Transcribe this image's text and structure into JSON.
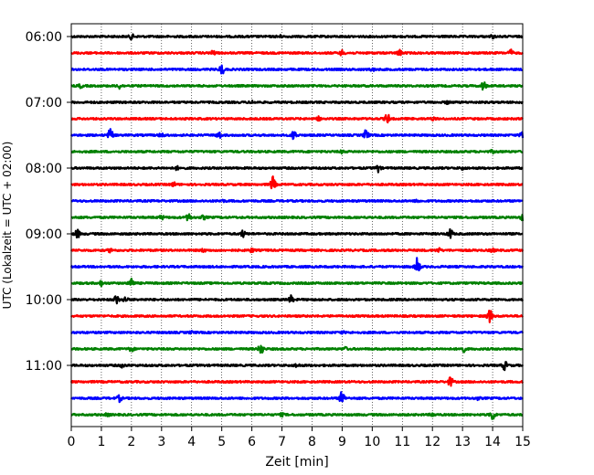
{
  "chart_data": {
    "type": "line",
    "title": "",
    "xlabel": "Zeit  [min]",
    "ylabel": "UTC (Lokalzeit = UTC + 02:00)",
    "xlim": [
      0,
      15
    ],
    "x_ticks": [
      0,
      1,
      2,
      3,
      4,
      5,
      6,
      7,
      8,
      9,
      10,
      11,
      12,
      13,
      14,
      15
    ],
    "x_tick_labels": [
      "0",
      "1",
      "2",
      "3",
      "4",
      "5",
      "6",
      "7",
      "8",
      "9",
      "10",
      "11",
      "12",
      "13",
      "14",
      "15"
    ],
    "y_tick_labels": [
      "06:00",
      "07:00",
      "08:00",
      "09:00",
      "10:00",
      "11:00"
    ],
    "vertical_grid": true,
    "trace_interval_minutes": 15,
    "color_cycle": [
      "#000000",
      "#ff0000",
      "#0000ff",
      "#008000"
    ],
    "series": [
      {
        "start": "06:00",
        "events": [
          {
            "t": 2.0,
            "amp": 0.8
          },
          {
            "t": 6.9,
            "amp": 0.5
          },
          {
            "t": 14.0,
            "amp": 0.5
          }
        ]
      },
      {
        "start": "06:15",
        "events": [
          {
            "t": 4.7,
            "amp": 0.8
          },
          {
            "t": 9.0,
            "amp": 0.9
          },
          {
            "t": 10.9,
            "amp": 1.0
          },
          {
            "t": 14.6,
            "amp": 1.0
          }
        ]
      },
      {
        "start": "06:30",
        "events": [
          {
            "t": 5.0,
            "amp": 1.8
          },
          {
            "t": 10.0,
            "amp": 0.5
          }
        ]
      },
      {
        "start": "06:45",
        "events": [
          {
            "t": 0.3,
            "amp": 0.6
          },
          {
            "t": 1.6,
            "amp": 0.9
          },
          {
            "t": 13.7,
            "amp": 1.6
          }
        ]
      },
      {
        "start": "07:00",
        "events": [
          {
            "t": 6.0,
            "amp": 0.4
          },
          {
            "t": 12.5,
            "amp": 0.4
          }
        ]
      },
      {
        "start": "07:15",
        "events": [
          {
            "t": 8.2,
            "amp": 0.7
          },
          {
            "t": 10.5,
            "amp": 1.8
          },
          {
            "t": 12.0,
            "amp": 0.4
          }
        ]
      },
      {
        "start": "07:30",
        "events": [
          {
            "t": 1.3,
            "amp": 2.2
          },
          {
            "t": 3.0,
            "amp": 0.7
          },
          {
            "t": 4.9,
            "amp": 1.3
          },
          {
            "t": 7.4,
            "amp": 1.8
          },
          {
            "t": 9.8,
            "amp": 2.0
          },
          {
            "t": 15.0,
            "amp": 2.0
          }
        ]
      },
      {
        "start": "07:45",
        "events": [
          {
            "t": 9.0,
            "amp": 0.4
          },
          {
            "t": 14.0,
            "amp": 0.4
          }
        ]
      },
      {
        "start": "08:00",
        "events": [
          {
            "t": 3.5,
            "amp": 0.5
          },
          {
            "t": 10.2,
            "amp": 1.3
          },
          {
            "t": 13.0,
            "amp": 0.4
          }
        ]
      },
      {
        "start": "08:15",
        "events": [
          {
            "t": 3.4,
            "amp": 0.7
          },
          {
            "t": 6.7,
            "amp": 2.8
          }
        ]
      },
      {
        "start": "08:30",
        "events": [
          {
            "t": 5.0,
            "amp": 0.4
          },
          {
            "t": 11.5,
            "amp": 0.4
          }
        ]
      },
      {
        "start": "08:45",
        "events": [
          {
            "t": 3.0,
            "amp": 0.6
          },
          {
            "t": 3.9,
            "amp": 1.3
          },
          {
            "t": 4.4,
            "amp": 0.6
          },
          {
            "t": 15.0,
            "amp": 1.1
          }
        ]
      },
      {
        "start": "09:00",
        "events": [
          {
            "t": 0.2,
            "amp": 1.6
          },
          {
            "t": 5.7,
            "amp": 1.1
          },
          {
            "t": 12.6,
            "amp": 1.7
          }
        ]
      },
      {
        "start": "09:15",
        "events": [
          {
            "t": 1.3,
            "amp": 0.6
          },
          {
            "t": 4.4,
            "amp": 0.5
          },
          {
            "t": 6.0,
            "amp": 0.6
          },
          {
            "t": 12.2,
            "amp": 0.7
          },
          {
            "t": 14.0,
            "amp": 0.6
          }
        ]
      },
      {
        "start": "09:30",
        "events": [
          {
            "t": 11.5,
            "amp": 3.4
          }
        ]
      },
      {
        "start": "09:45",
        "events": [
          {
            "t": 2.0,
            "amp": 2.0
          },
          {
            "t": 1.0,
            "amp": 0.8
          }
        ]
      },
      {
        "start": "10:00",
        "events": [
          {
            "t": 1.5,
            "amp": 1.6
          },
          {
            "t": 1.8,
            "amp": 0.9
          },
          {
            "t": 7.3,
            "amp": 1.3
          }
        ]
      },
      {
        "start": "10:15",
        "events": [
          {
            "t": 13.9,
            "amp": 3.0
          }
        ]
      },
      {
        "start": "10:30",
        "events": [
          {
            "t": 4.0,
            "amp": 0.3
          },
          {
            "t": 9.0,
            "amp": 0.3
          }
        ]
      },
      {
        "start": "10:45",
        "events": [
          {
            "t": 2.0,
            "amp": 0.9
          },
          {
            "t": 6.3,
            "amp": 2.2
          },
          {
            "t": 9.1,
            "amp": 0.5
          },
          {
            "t": 13.0,
            "amp": 1.4
          }
        ]
      },
      {
        "start": "11:00",
        "events": [
          {
            "t": 1.7,
            "amp": 0.6
          },
          {
            "t": 7.5,
            "amp": 0.6
          },
          {
            "t": 14.4,
            "amp": 1.6
          }
        ]
      },
      {
        "start": "11:15",
        "events": [
          {
            "t": 12.6,
            "amp": 1.7
          }
        ]
      },
      {
        "start": "11:30",
        "events": [
          {
            "t": 1.6,
            "amp": 1.1
          },
          {
            "t": 9.0,
            "amp": 2.8
          },
          {
            "t": 13.5,
            "amp": 0.4
          }
        ]
      },
      {
        "start": "11:45",
        "events": [
          {
            "t": 1.2,
            "amp": 0.4
          },
          {
            "t": 7.0,
            "amp": 0.4
          },
          {
            "t": 12.0,
            "amp": 0.5
          },
          {
            "t": 14.0,
            "amp": 2.0
          }
        ]
      }
    ]
  }
}
